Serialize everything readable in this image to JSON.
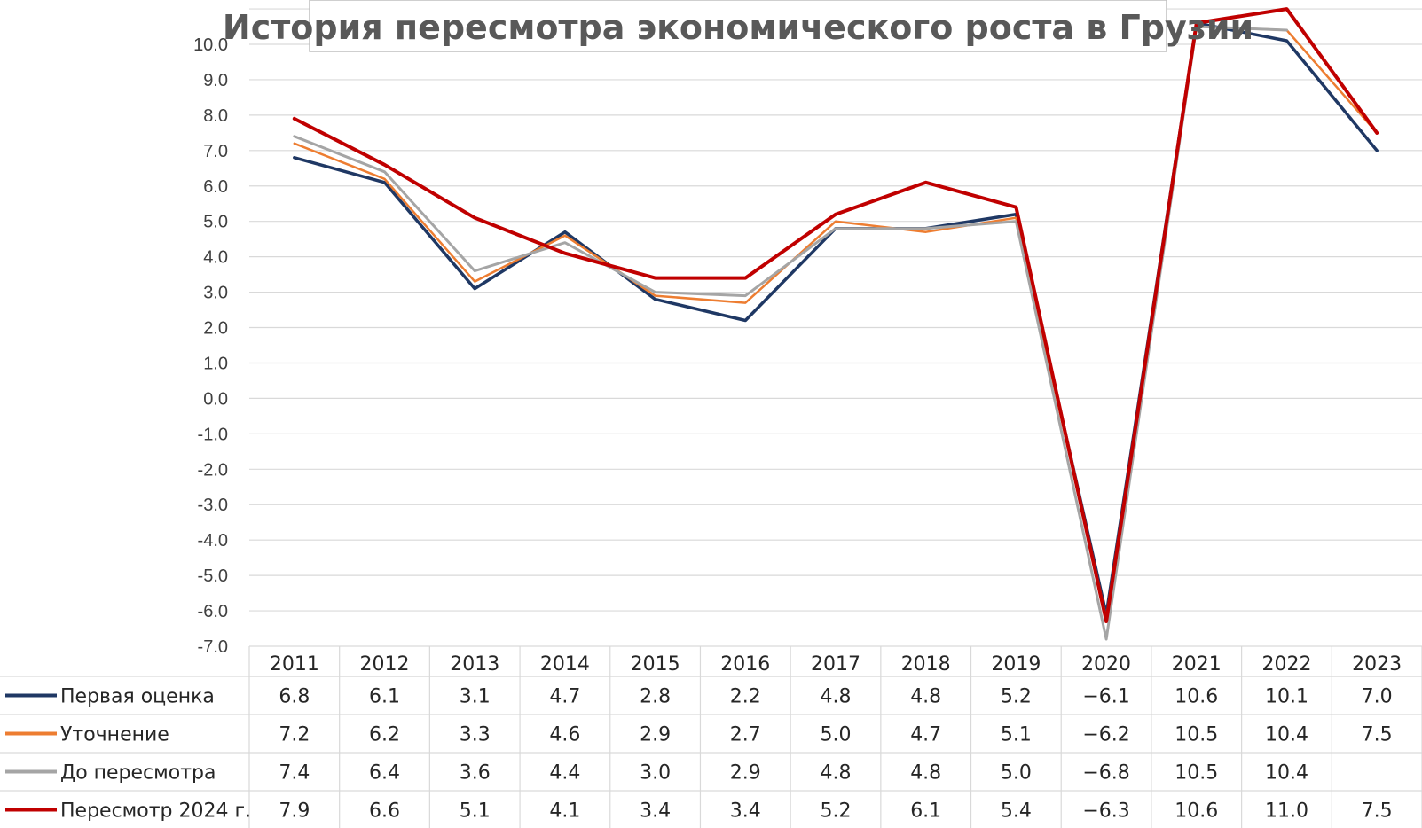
{
  "chart_data": {
    "type": "line",
    "title": "История пересмотра экономического роста в Грузии",
    "categories": [
      "2011",
      "2012",
      "2013",
      "2014",
      "2015",
      "2016",
      "2017",
      "2018",
      "2019",
      "2020",
      "2021",
      "2022",
      "2023"
    ],
    "ylim": [
      -7.0,
      11.0
    ],
    "ytick_step": 1.0,
    "yticks": [
      "10.0",
      "9.0",
      "8.0",
      "7.0",
      "6.0",
      "5.0",
      "4.0",
      "3.0",
      "2.0",
      "1.0",
      "0.0",
      "-1.0",
      "-2.0",
      "-3.0",
      "-4.0",
      "-5.0",
      "-6.0",
      "-7.0"
    ],
    "grid": true,
    "legend": "data-table-bottom",
    "series": [
      {
        "name": "Первая оценка",
        "color": "#1f3864",
        "values": [
          6.8,
          6.1,
          3.1,
          4.7,
          2.8,
          2.2,
          4.8,
          4.8,
          5.2,
          -6.1,
          10.6,
          10.1,
          7.0
        ],
        "labels": [
          "6.8",
          "6.1",
          "3.1",
          "4.7",
          "2.8",
          "2.2",
          "4.8",
          "4.8",
          "5.2",
          "−6.1",
          "10.6",
          "10.1",
          "7.0"
        ]
      },
      {
        "name": "Уточнение",
        "color": "#ed7d31",
        "values": [
          7.2,
          6.2,
          3.3,
          4.6,
          2.9,
          2.7,
          5.0,
          4.7,
          5.1,
          -6.2,
          10.5,
          10.4,
          7.5
        ],
        "labels": [
          "7.2",
          "6.2",
          "3.3",
          "4.6",
          "2.9",
          "2.7",
          "5.0",
          "4.7",
          "5.1",
          "−6.2",
          "10.5",
          "10.4",
          "7.5"
        ]
      },
      {
        "name": "До пересмотра",
        "color": "#a5a5a5",
        "values": [
          7.4,
          6.4,
          3.6,
          4.4,
          3.0,
          2.9,
          4.8,
          4.8,
          5.0,
          -6.8,
          10.5,
          10.4,
          null
        ],
        "labels": [
          "7.4",
          "6.4",
          "3.6",
          "4.4",
          "3.0",
          "2.9",
          "4.8",
          "4.8",
          "5.0",
          "−6.8",
          "10.5",
          "10.4",
          ""
        ]
      },
      {
        "name": "Пересмотр 2024 г.",
        "color": "#c00000",
        "values": [
          7.9,
          6.6,
          5.1,
          4.1,
          3.4,
          3.4,
          5.2,
          6.1,
          5.4,
          -6.3,
          10.6,
          11.0,
          7.5
        ],
        "labels": [
          "7.9",
          "6.6",
          "5.1",
          "4.1",
          "3.4",
          "3.4",
          "5.2",
          "6.1",
          "5.4",
          "−6.3",
          "10.6",
          "11.0",
          "7.5"
        ]
      }
    ]
  }
}
